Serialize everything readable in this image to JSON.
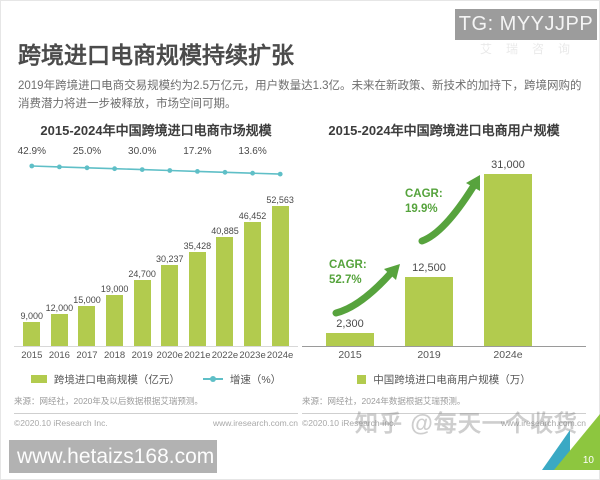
{
  "colors": {
    "bar_green": "#b2cb4e",
    "line_teal": "#5fbfc7",
    "arrow_green": "#57a33d",
    "accent_green": "#8dc63f"
  },
  "overlays": {
    "tg_badge": "TG: MYYJJPP",
    "faint_logo": "艾瑞咨询",
    "site_banner": "www.hetaizs168.com",
    "zhihu_watermark": "知乎 @每天一个收货",
    "page_number": "10"
  },
  "header": {
    "title": "跨境进口电商规模持续扩张",
    "subtitle": "2019年跨境进口电商交易规模约为2.5万亿元，用户数量达1.3亿。未来在新政策、新技术的加持下，跨境网购的消费潜力将进一步被释放，市场空间可期。"
  },
  "chart_data": [
    {
      "type": "bar",
      "title": "2015-2024年中国跨境进口电商市场规模",
      "categories": [
        "2015",
        "2016",
        "2017",
        "2018",
        "2019",
        "2020e",
        "2021e",
        "2022e",
        "2023e",
        "2024e"
      ],
      "series": [
        {
          "name": "跨境进口电商规模（亿元）",
          "kind": "bar",
          "values": [
            9000,
            12000,
            15000,
            19000,
            24700,
            30237,
            35428,
            40885,
            46452,
            52563
          ],
          "labels": [
            "9,000",
            "12,000",
            "15,000",
            "19,000",
            "24,700",
            "30,237",
            "35,428",
            "40,885",
            "46,452",
            "52,563"
          ]
        },
        {
          "name": "增速（%）",
          "kind": "line",
          "labeled_points": [
            {
              "index": 0,
              "label": "42.9%",
              "value": 42.9
            },
            {
              "index": 2,
              "label": "25.0%",
              "value": 25.0
            },
            {
              "index": 4,
              "label": "30.0%",
              "value": 30.0
            },
            {
              "index": 6,
              "label": "17.2%",
              "value": 17.2
            },
            {
              "index": 8,
              "label": "13.6%",
              "value": 13.6
            }
          ]
        }
      ],
      "ylim": [
        0,
        52563
      ],
      "legend_position": "bottom",
      "grid": false,
      "source": "来源：网经社，2020年及以后数据根据艾瑞预测。",
      "footer_left": "©2020.10 iResearch Inc.",
      "footer_right": "www.iresearch.com.cn"
    },
    {
      "type": "bar",
      "title": "2015-2024年中国跨境进口电商用户规模",
      "categories": [
        "2015",
        "2019",
        "2024e"
      ],
      "values": [
        2300,
        12500,
        31000
      ],
      "labels": [
        "2,300",
        "12,500",
        "31,000"
      ],
      "legend": "中国跨境进口电商用户规模（万）",
      "annotations": [
        {
          "text": "CAGR:",
          "value": "52.7%",
          "between": [
            "2015",
            "2019"
          ]
        },
        {
          "text": "CAGR:",
          "value": "19.9%",
          "between": [
            "2019",
            "2024e"
          ]
        }
      ],
      "ylim": [
        0,
        31000
      ],
      "grid": false,
      "source": "来源：网经社，2024年数据根据艾瑞预测。",
      "footer_left": "©2020.10 iResearch Inc.",
      "footer_right": "www.iresearch.com.cn"
    }
  ]
}
